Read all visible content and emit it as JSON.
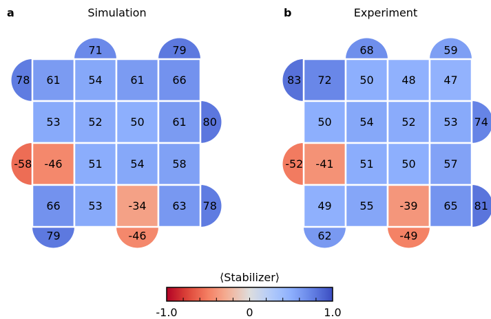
{
  "chart_data": [
    {
      "type": "heatmap",
      "panel_label": "a",
      "title": "Simulation",
      "rows": [
        [
          61,
          54,
          61,
          66
        ],
        [
          53,
          52,
          50,
          61
        ],
        [
          -46,
          51,
          54,
          58
        ],
        [
          66,
          53,
          -34,
          63
        ]
      ],
      "boundary": {
        "top": [
          {
            "col": 1,
            "value": 71
          },
          {
            "col": 3,
            "value": 79
          }
        ],
        "bottom": [
          {
            "col": 0,
            "value": 79
          },
          {
            "col": 2,
            "value": -46
          }
        ],
        "left": [
          {
            "row": 0,
            "value": 78
          },
          {
            "row": 2,
            "value": -58
          }
        ],
        "right": [
          {
            "row": 1,
            "value": 80
          },
          {
            "row": 3,
            "value": 78
          }
        ]
      }
    },
    {
      "type": "heatmap",
      "panel_label": "b",
      "title": "Experiment",
      "rows": [
        [
          72,
          50,
          48,
          47
        ],
        [
          50,
          54,
          52,
          53
        ],
        [
          -41,
          51,
          50,
          57
        ],
        [
          49,
          55,
          -39,
          65
        ]
      ],
      "boundary": {
        "top": [
          {
            "col": 1,
            "value": 68
          },
          {
            "col": 3,
            "value": 59
          }
        ],
        "bottom": [
          {
            "col": 0,
            "value": 62
          },
          {
            "col": 2,
            "value": -49
          }
        ],
        "left": [
          {
            "row": 0,
            "value": 83
          },
          {
            "row": 2,
            "value": -52
          }
        ],
        "right": [
          {
            "row": 1,
            "value": 74
          },
          {
            "row": 3,
            "value": 81
          }
        ]
      }
    }
  ],
  "colorbar": {
    "label": "⟨Stabilizer⟩",
    "colormap": "coolwarm",
    "range": [
      -1.0,
      1.0
    ],
    "tick_labels": [
      "-1.0",
      "0",
      "1.0"
    ]
  }
}
